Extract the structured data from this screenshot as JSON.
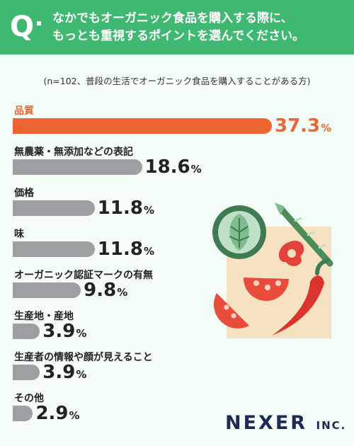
{
  "header": {
    "q": "Q",
    "title_line1": "なかでもオーガニック食品を購入する際に、",
    "title_line2": "もっとも重視するポイントを選んでください。"
  },
  "note": "(n=102、普段の生活でオーガニック食品を購入することがある方)",
  "chart_data": {
    "type": "bar",
    "orientation": "horizontal",
    "categories": [
      "品質",
      "無農薬・無添加などの表記",
      "価格",
      "味",
      "オーガニック認証マークの有無",
      "生産地・産地",
      "生産者の情報や顔が見えること",
      "その他"
    ],
    "values": [
      37.3,
      18.6,
      11.8,
      11.8,
      9.8,
      3.9,
      3.9,
      2.9
    ],
    "value_labels": [
      "37.3",
      "18.6",
      "11.8",
      "11.8",
      "9.8",
      "3.9",
      "3.9",
      "2.9"
    ],
    "unit": "%",
    "highlight_index": 0,
    "colors": {
      "highlight": "#ee6533",
      "default": "#9e9fa3",
      "header": "#3fb872"
    }
  },
  "logo": {
    "name": "NEXER",
    "suffix": "INC."
  }
}
